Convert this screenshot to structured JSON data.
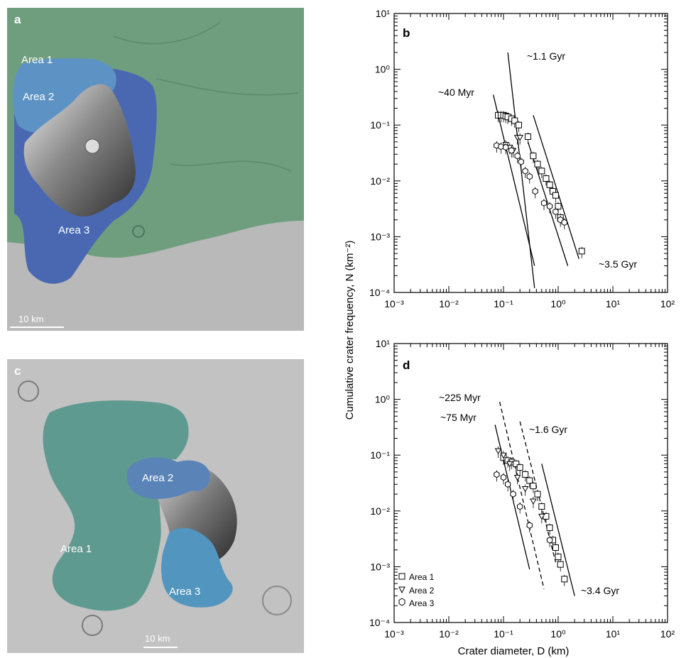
{
  "panels": {
    "a": {
      "label": "a",
      "areas": [
        "Area 1",
        "Area 2",
        "Area 3"
      ],
      "scale_bar": "10 km",
      "colors": {
        "area1": "#6f9e7e",
        "area2": "#5d93c4",
        "area3": "#4a68b2",
        "terrain": "#b9b9b9"
      }
    },
    "c": {
      "label": "c",
      "areas": [
        "Area 1",
        "Area 2",
        "Area 3"
      ],
      "scale_bar": "10 km",
      "colors": {
        "area1": "#5f9a90",
        "area2": "#5a84b8",
        "area3": "#5295bf",
        "terrain": "#c2c2c2"
      }
    }
  },
  "shared_axes": {
    "ylabel": "Cumulative crater frequency, N (km⁻²)",
    "xlabel": "Crater diameter, D (km)",
    "x_ticks": [
      "10⁻³",
      "10⁻²",
      "10⁻¹",
      "10⁰",
      "10¹",
      "10²"
    ],
    "y_ticks": [
      "10⁻⁴",
      "10⁻³",
      "10⁻²",
      "10⁻¹",
      "10⁰",
      "10¹"
    ]
  },
  "legend": {
    "entries": [
      "Area 1",
      "Area 2",
      "Area 3"
    ],
    "markers": [
      "square",
      "triangle-down",
      "hexagon"
    ]
  },
  "chart_data": [
    {
      "panel": "b",
      "type": "scatter",
      "xscale": "log",
      "yscale": "log",
      "xlim": [
        0.001,
        100
      ],
      "ylim": [
        0.0001,
        10
      ],
      "series": [
        {
          "marker": "square",
          "x": [
            0.08,
            0.09,
            0.1,
            0.11,
            0.12,
            0.14,
            0.16,
            0.19,
            0.28,
            0.35,
            0.42,
            0.5,
            0.6,
            0.7,
            0.8,
            0.9,
            1.0,
            1.1,
            2.7
          ],
          "y": [
            0.15,
            0.15,
            0.15,
            0.145,
            0.14,
            0.13,
            0.12,
            0.1,
            0.062,
            0.028,
            0.02,
            0.015,
            0.011,
            0.0085,
            0.0065,
            0.0055,
            0.0035,
            0.0022,
            0.00055
          ]
        },
        {
          "marker": "triangle-down",
          "x": [
            0.11,
            0.13,
            0.15,
            0.18,
            0.2
          ],
          "y": [
            0.045,
            0.04,
            0.035,
            0.06,
            0.06
          ]
        },
        {
          "marker": "hexagon",
          "x": [
            0.075,
            0.09,
            0.11,
            0.14,
            0.18,
            0.21,
            0.25,
            0.3,
            0.38,
            0.55,
            0.7,
            0.9,
            1.1,
            1.3
          ],
          "y": [
            0.043,
            0.041,
            0.04,
            0.035,
            0.028,
            0.022,
            0.015,
            0.012,
            0.0065,
            0.004,
            0.0035,
            0.0028,
            0.002,
            0.0018
          ]
        }
      ],
      "isochrons": [
        {
          "label": "~1.1 Gyr",
          "style": "solid"
        },
        {
          "label": "~40 Myr",
          "style": "solid"
        },
        {
          "label": "~3.5 Gyr",
          "style": "solid"
        }
      ]
    },
    {
      "panel": "d",
      "type": "scatter",
      "xscale": "log",
      "yscale": "log",
      "xlim": [
        0.001,
        100
      ],
      "ylim": [
        0.0001,
        10
      ],
      "series": [
        {
          "marker": "square",
          "x": [
            0.1,
            0.12,
            0.14,
            0.17,
            0.2,
            0.25,
            0.3,
            0.35,
            0.42,
            0.5,
            0.6,
            0.7,
            0.8,
            0.9,
            1.0,
            1.1,
            1.3
          ],
          "y": [
            0.09,
            0.08,
            0.075,
            0.07,
            0.06,
            0.045,
            0.035,
            0.028,
            0.02,
            0.012,
            0.008,
            0.005,
            0.003,
            0.0022,
            0.0015,
            0.0011,
            0.0006
          ]
        },
        {
          "marker": "triangle-down",
          "x": [
            0.08,
            0.1,
            0.13,
            0.18,
            0.25,
            0.35,
            0.5
          ],
          "y": [
            0.12,
            0.1,
            0.07,
            0.04,
            0.025,
            0.015,
            0.008
          ]
        },
        {
          "marker": "hexagon",
          "x": [
            0.075,
            0.1,
            0.12,
            0.15,
            0.2,
            0.3,
            0.7
          ],
          "y": [
            0.045,
            0.04,
            0.03,
            0.02,
            0.012,
            0.0055,
            0.003
          ]
        }
      ],
      "isochrons": [
        {
          "label": "~225 Myr",
          "style": "dashed"
        },
        {
          "label": "~75 Myr",
          "style": "solid"
        },
        {
          "label": "~1.6 Gyr",
          "style": "dashed"
        },
        {
          "label": "~3.4 Gyr",
          "style": "solid"
        }
      ]
    }
  ]
}
